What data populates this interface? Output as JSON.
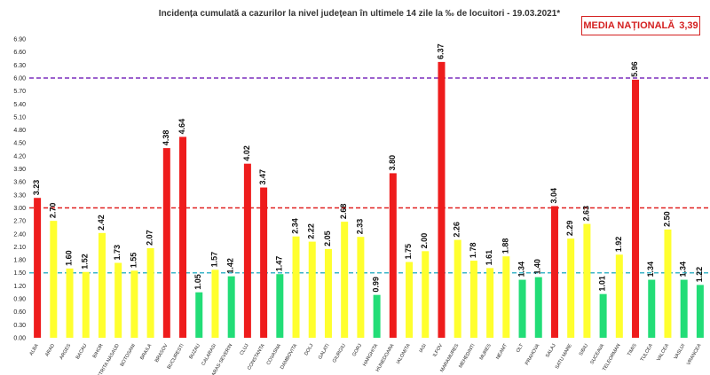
{
  "chart_data": {
    "type": "bar",
    "title": "Incidența cumulată a cazurilor la nivel județean în ultimele 14 zile la ‰ de locuitori - 19.03.2021*",
    "national_average": {
      "label": "MEDIA NAȚIONALĂ",
      "value": "3,39"
    },
    "ylim": [
      0,
      6.9
    ],
    "ytick_step": 0.3,
    "yticks": [
      "0.00",
      "0.30",
      "0.60",
      "0.90",
      "1.20",
      "1.50",
      "1.80",
      "2.10",
      "2.40",
      "2.70",
      "3.00",
      "3.30",
      "3.60",
      "3.90",
      "4.20",
      "4.50",
      "4.80",
      "5.10",
      "5.40",
      "5.70",
      "6.00",
      "6.30",
      "6.60",
      "6.90"
    ],
    "grid": false,
    "reference_lines": [
      {
        "value": 6.0,
        "color": "#7b2fbe"
      },
      {
        "value": 3.0,
        "color": "#e02020"
      },
      {
        "value": 1.5,
        "color": "#3cb6c9"
      }
    ],
    "colors": {
      "red": "#ee1c1c",
      "yellow": "#ffff2e",
      "green": "#22dd77"
    },
    "categories": [
      "ALBA",
      "ARAD",
      "ARGES",
      "BACAU",
      "BIHOR",
      "BISTRITA NASAUD",
      "BOTOSANI",
      "BRAILA",
      "BRASOV",
      "BUCURESTI",
      "BUZAU",
      "CALARASI",
      "CARAS-SEVERIN",
      "CLUJ",
      "CONSTANTA",
      "COVASNA",
      "DAMBOVITA",
      "DOLJ",
      "GALATI",
      "GIURGIU",
      "GORJ",
      "HARGHITA",
      "HUNEDOARA",
      "IALOMITA",
      "IASI",
      "ILFOV",
      "MARAMURES",
      "MEHEDINTI",
      "MURES",
      "NEAMT",
      "OLT",
      "PRAHOVA",
      "SALAJ",
      "SATU MARE",
      "SIBIU",
      "SUCEAVA",
      "TELEORMAN",
      "TIMIS",
      "TULCEA",
      "VALCEA",
      "VASLUI",
      "VRANCEA"
    ],
    "values": [
      3.23,
      2.7,
      1.6,
      1.52,
      2.42,
      1.73,
      1.55,
      2.07,
      4.38,
      4.64,
      1.05,
      1.57,
      1.42,
      4.02,
      3.47,
      1.47,
      2.34,
      2.22,
      2.05,
      2.68,
      2.33,
      0.99,
      3.8,
      1.75,
      2.0,
      6.37,
      2.26,
      1.78,
      1.61,
      1.88,
      1.34,
      1.4,
      3.04,
      2.29,
      2.63,
      1.01,
      1.92,
      5.96,
      1.34,
      2.5,
      1.34,
      1.22
    ],
    "labels": [
      "3.23",
      "2.70",
      "1.60",
      "1.52",
      "2.42",
      "1.73",
      "1.55",
      "2.07",
      "4.38",
      "4.64",
      "1.05",
      "1.57",
      "1.42",
      "4.02",
      "3.47",
      "1.47",
      "2.34",
      "2.22",
      "2.05",
      "2.68",
      "2.33",
      "0.99",
      "3.80",
      "1.75",
      "2.00",
      "6.37",
      "2.26",
      "1.78",
      "1.61",
      "1.88",
      "1.34",
      "1.40",
      "3.04",
      "2.29",
      "2.63",
      "1.01",
      "1.92",
      "5.96",
      "1.34",
      "2.50",
      "1.34",
      "1.22"
    ],
    "bar_colors": [
      "red",
      "yellow",
      "yellow",
      "yellow",
      "yellow",
      "yellow",
      "yellow",
      "yellow",
      "red",
      "red",
      "green",
      "yellow",
      "green",
      "red",
      "red",
      "green",
      "yellow",
      "yellow",
      "yellow",
      "yellow",
      "yellow",
      "green",
      "red",
      "yellow",
      "yellow",
      "red",
      "yellow",
      "yellow",
      "yellow",
      "yellow",
      "green",
      "green",
      "red",
      "yellow",
      "yellow",
      "green",
      "yellow",
      "red",
      "green",
      "yellow",
      "green",
      "green"
    ]
  }
}
